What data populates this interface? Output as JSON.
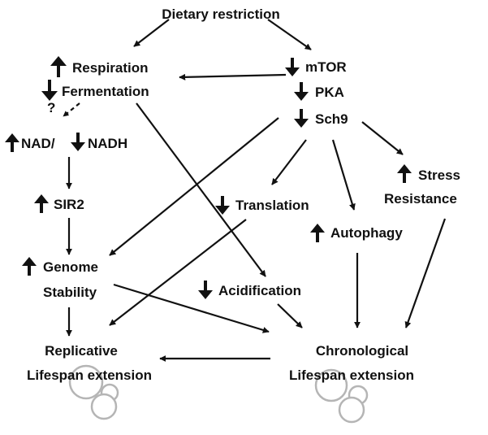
{
  "nodes": {
    "dietary_restriction": "Dietary restriction",
    "respiration": "Respiration",
    "fermentation": "Fermentation",
    "question_mark": "?",
    "nad_nadh_left": "NAD/",
    "nad_nadh_right": "NADH",
    "sir2": "SIR2",
    "genome_line1": "Genome",
    "genome_line2": "Stability",
    "replicative_line1": "Replicative",
    "replicative_line2": "Lifespan extension",
    "mtor": "mTOR",
    "pka": "PKA",
    "sch9": "Sch9",
    "translation": "Translation",
    "stress_line1": "Stress",
    "stress_line2": "Resistance",
    "autophagy": "Autophagy",
    "acidification": "Acidification",
    "chronological_line1": "Chronological",
    "chronological_line2": "Lifespan extension"
  },
  "arrow_directions": {
    "respiration": "up",
    "fermentation": "down",
    "nad": "up",
    "nadh": "down",
    "sir2": "up",
    "genome": "up",
    "mtor": "down",
    "pka": "down",
    "sch9": "down",
    "translation": "down",
    "stress": "up",
    "autophagy": "up",
    "acidification": "down"
  },
  "colors": {
    "text": "#111111",
    "arrows": "#111111",
    "cell_outline": "#b5b5b5"
  }
}
